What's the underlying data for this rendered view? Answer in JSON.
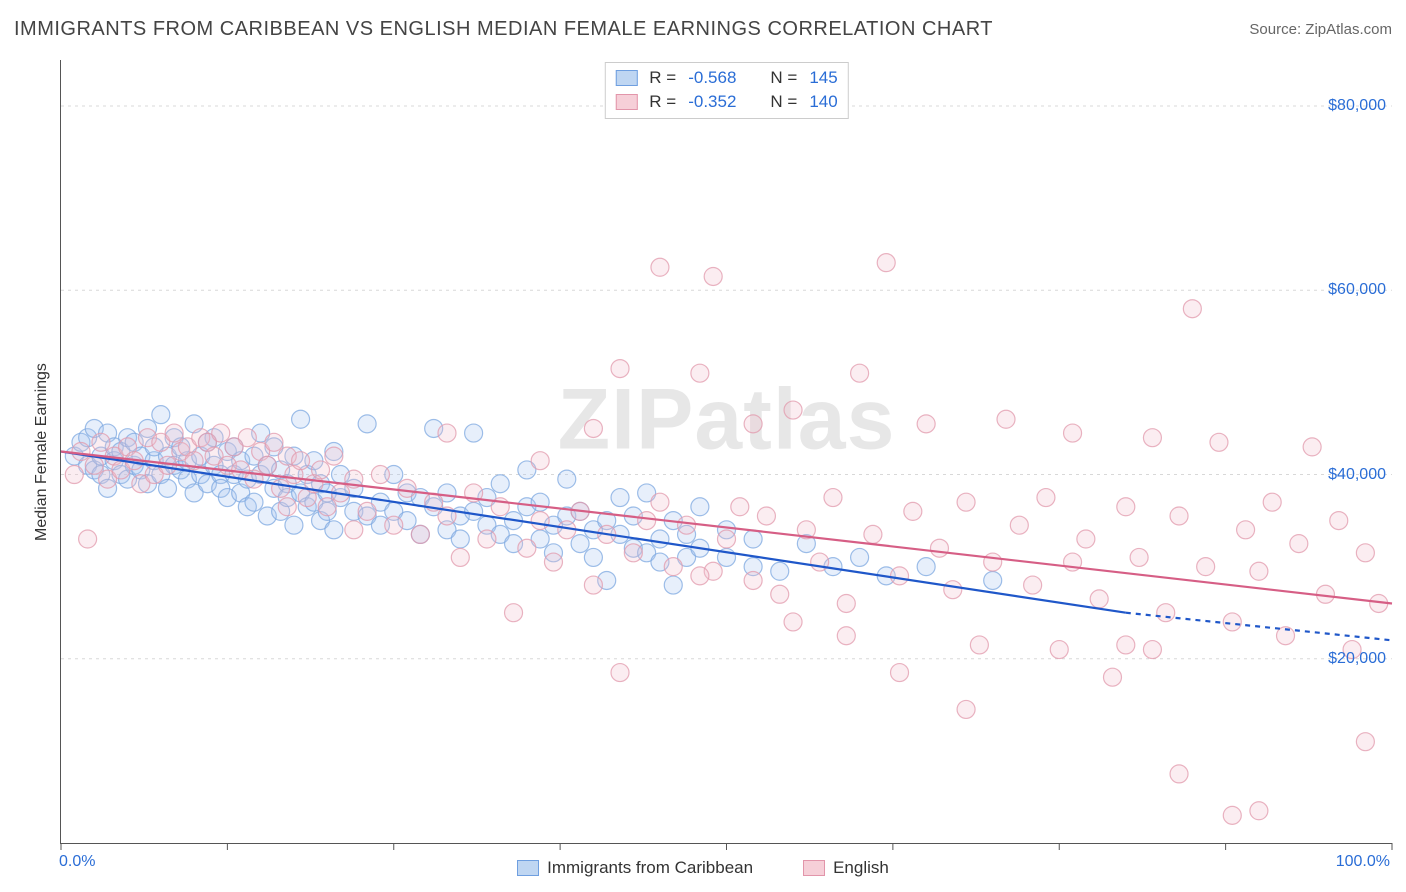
{
  "header": {
    "title": "IMMIGRANTS FROM CARIBBEAN VS ENGLISH MEDIAN FEMALE EARNINGS CORRELATION CHART",
    "source_prefix": "Source: ",
    "source_name": "ZipAtlas.com"
  },
  "watermark": "ZIPatlas",
  "axes": {
    "ylabel": "Median Female Earnings",
    "xmin_label": "0.0%",
    "xmax_label": "100.0%",
    "xlim": [
      0,
      100
    ],
    "ylim": [
      0,
      85000
    ],
    "yticks": [
      {
        "v": 20000,
        "label": "$20,000"
      },
      {
        "v": 40000,
        "label": "$40,000"
      },
      {
        "v": 60000,
        "label": "$60,000"
      },
      {
        "v": 80000,
        "label": "$80,000"
      }
    ],
    "ytick_color": "#2a6dd6",
    "xaxis_label_color": "#2a6dd6",
    "xtick_positions": [
      0,
      12.5,
      25,
      37.5,
      50,
      62.5,
      75,
      87.5,
      100
    ],
    "grid_color": "#d8d8d8",
    "background_color": "#ffffff"
  },
  "marker": {
    "radius": 9,
    "fill_opacity": 0.28,
    "stroke_opacity": 0.75,
    "stroke_width": 1.2
  },
  "series": [
    {
      "key": "blue",
      "name": "Immigrants from Caribbean",
      "color_stroke": "#7ea8e0",
      "color_fill": "#a9c7ef",
      "swatch_fill": "#bfd6f2",
      "swatch_border": "#6f9fe0",
      "trend_color": "#1f57c9",
      "R": "-0.568",
      "N": "145",
      "trend": {
        "x1": 0,
        "y1": 42500,
        "x2": 80,
        "y2": 25000,
        "x2_ext": 100,
        "y2_ext": 22000
      },
      "points": [
        [
          1,
          42000
        ],
        [
          1.5,
          43500
        ],
        [
          2,
          41000
        ],
        [
          2,
          44000
        ],
        [
          2.5,
          40500
        ],
        [
          2.5,
          45000
        ],
        [
          3,
          42000
        ],
        [
          3,
          40000
        ],
        [
          3.5,
          44500
        ],
        [
          3.5,
          38500
        ],
        [
          4,
          43000
        ],
        [
          4,
          41500
        ],
        [
          4.5,
          40000
        ],
        [
          4.5,
          42500
        ],
        [
          5,
          44000
        ],
        [
          5,
          39500
        ],
        [
          5.5,
          41000
        ],
        [
          5.5,
          43500
        ],
        [
          6,
          42000
        ],
        [
          6,
          40500
        ],
        [
          6.5,
          45000
        ],
        [
          6.5,
          39000
        ],
        [
          7,
          41500
        ],
        [
          7,
          43000
        ],
        [
          7.5,
          40000
        ],
        [
          7.5,
          46500
        ],
        [
          8,
          42000
        ],
        [
          8,
          38500
        ],
        [
          8.5,
          41000
        ],
        [
          8.5,
          44000
        ],
        [
          9,
          40500
        ],
        [
          9,
          43000
        ],
        [
          9.5,
          39500
        ],
        [
          9.5,
          41500
        ],
        [
          10,
          45500
        ],
        [
          10,
          38000
        ],
        [
          10.5,
          42000
        ],
        [
          10.5,
          40000
        ],
        [
          11,
          43500
        ],
        [
          11,
          39000
        ],
        [
          11.5,
          41000
        ],
        [
          11.5,
          44000
        ],
        [
          12,
          40000
        ],
        [
          12,
          38500
        ],
        [
          12.5,
          42500
        ],
        [
          12.5,
          37500
        ],
        [
          13,
          40000
        ],
        [
          13,
          43000
        ],
        [
          13.5,
          38000
        ],
        [
          13.5,
          41500
        ],
        [
          14,
          39500
        ],
        [
          14,
          36500
        ],
        [
          14.5,
          42000
        ],
        [
          14.5,
          37000
        ],
        [
          15,
          40000
        ],
        [
          15,
          44500
        ],
        [
          15.5,
          35500
        ],
        [
          15.5,
          41000
        ],
        [
          16,
          38500
        ],
        [
          16,
          43000
        ],
        [
          16.5,
          36000
        ],
        [
          16.5,
          40500
        ],
        [
          17,
          39000
        ],
        [
          17,
          37500
        ],
        [
          17.5,
          42000
        ],
        [
          17.5,
          34500
        ],
        [
          18,
          38000
        ],
        [
          18,
          46000
        ],
        [
          18.5,
          36500
        ],
        [
          18.5,
          40000
        ],
        [
          19,
          37000
        ],
        [
          19,
          41500
        ],
        [
          19.5,
          35000
        ],
        [
          19.5,
          39000
        ],
        [
          20,
          38000
        ],
        [
          20,
          36000
        ],
        [
          20.5,
          42500
        ],
        [
          20.5,
          34000
        ],
        [
          21,
          37500
        ],
        [
          21,
          40000
        ],
        [
          22,
          36000
        ],
        [
          22,
          38500
        ],
        [
          23,
          35500
        ],
        [
          23,
          45500
        ],
        [
          24,
          37000
        ],
        [
          24,
          34500
        ],
        [
          25,
          36000
        ],
        [
          25,
          40000
        ],
        [
          26,
          35000
        ],
        [
          26,
          38000
        ],
        [
          27,
          33500
        ],
        [
          27,
          37500
        ],
        [
          28,
          36500
        ],
        [
          28,
          45000
        ],
        [
          29,
          34000
        ],
        [
          29,
          38000
        ],
        [
          30,
          35500
        ],
        [
          30,
          33000
        ],
        [
          31,
          36000
        ],
        [
          31,
          44500
        ],
        [
          32,
          34500
        ],
        [
          32,
          37500
        ],
        [
          33,
          33500
        ],
        [
          33,
          39000
        ],
        [
          34,
          35000
        ],
        [
          34,
          32500
        ],
        [
          35,
          36500
        ],
        [
          35,
          40500
        ],
        [
          36,
          33000
        ],
        [
          36,
          37000
        ],
        [
          37,
          34500
        ],
        [
          37,
          31500
        ],
        [
          38,
          35500
        ],
        [
          38,
          39500
        ],
        [
          39,
          32500
        ],
        [
          39,
          36000
        ],
        [
          40,
          34000
        ],
        [
          40,
          31000
        ],
        [
          41,
          35000
        ],
        [
          41,
          28500
        ],
        [
          42,
          33500
        ],
        [
          42,
          37500
        ],
        [
          43,
          32000
        ],
        [
          43,
          35500
        ],
        [
          44,
          31500
        ],
        [
          44,
          38000
        ],
        [
          45,
          33000
        ],
        [
          45,
          30500
        ],
        [
          46,
          35000
        ],
        [
          46,
          28000
        ],
        [
          47,
          31000
        ],
        [
          47,
          33500
        ],
        [
          48,
          32000
        ],
        [
          48,
          36500
        ],
        [
          50,
          31000
        ],
        [
          50,
          34000
        ],
        [
          52,
          30000
        ],
        [
          52,
          33000
        ],
        [
          54,
          29500
        ],
        [
          56,
          32500
        ],
        [
          58,
          30000
        ],
        [
          60,
          31000
        ],
        [
          62,
          29000
        ],
        [
          65,
          30000
        ],
        [
          70,
          28500
        ]
      ]
    },
    {
      "key": "pink",
      "name": "English",
      "color_stroke": "#e19aac",
      "color_fill": "#f2c0cc",
      "swatch_fill": "#f6cfd8",
      "swatch_border": "#e295aa",
      "trend_color": "#d65e85",
      "R": "-0.352",
      "N": "140",
      "trend": {
        "x1": 0,
        "y1": 42500,
        "x2": 100,
        "y2": 26000,
        "x2_ext": 100,
        "y2_ext": 26000
      },
      "points": [
        [
          1,
          40000
        ],
        [
          1.5,
          42500
        ],
        [
          2,
          33000
        ],
        [
          2.5,
          41000
        ],
        [
          3,
          43500
        ],
        [
          3.5,
          39500
        ],
        [
          4,
          42000
        ],
        [
          4.5,
          40500
        ],
        [
          5,
          43000
        ],
        [
          5.5,
          41500
        ],
        [
          6,
          39000
        ],
        [
          6.5,
          44000
        ],
        [
          7,
          40000
        ],
        [
          7.5,
          43500
        ],
        [
          8,
          41000
        ],
        [
          8.5,
          44500
        ],
        [
          9,
          42500
        ],
        [
          9.5,
          43000
        ],
        [
          10,
          41500
        ],
        [
          10.5,
          44000
        ],
        [
          11,
          43500
        ],
        [
          11.5,
          42000
        ],
        [
          12,
          44500
        ],
        [
          12.5,
          41000
        ],
        [
          13,
          43000
        ],
        [
          13.5,
          40500
        ],
        [
          14,
          44000
        ],
        [
          14.5,
          39500
        ],
        [
          15,
          42500
        ],
        [
          15.5,
          41000
        ],
        [
          16,
          43500
        ],
        [
          16.5,
          38500
        ],
        [
          17,
          42000
        ],
        [
          17.5,
          40000
        ],
        [
          18,
          41500
        ],
        [
          18.5,
          37500
        ],
        [
          19,
          39000
        ],
        [
          19.5,
          40500
        ],
        [
          20,
          36500
        ],
        [
          20.5,
          42000
        ],
        [
          21,
          38000
        ],
        [
          22,
          39500
        ],
        [
          23,
          36000
        ],
        [
          24,
          40000
        ],
        [
          25,
          34500
        ],
        [
          26,
          38500
        ],
        [
          27,
          33500
        ],
        [
          28,
          37000
        ],
        [
          29,
          35500
        ],
        [
          30,
          31000
        ],
        [
          31,
          38000
        ],
        [
          32,
          33000
        ],
        [
          33,
          36500
        ],
        [
          34,
          25000
        ],
        [
          35,
          32000
        ],
        [
          36,
          35000
        ],
        [
          37,
          30500
        ],
        [
          38,
          34000
        ],
        [
          39,
          36000
        ],
        [
          40,
          28000
        ],
        [
          41,
          33500
        ],
        [
          42,
          51500
        ],
        [
          43,
          31500
        ],
        [
          44,
          35000
        ],
        [
          45,
          37000
        ],
        [
          45,
          62500
        ],
        [
          46,
          30000
        ],
        [
          47,
          34500
        ],
        [
          48,
          51000
        ],
        [
          49,
          29500
        ],
        [
          49,
          61500
        ],
        [
          50,
          33000
        ],
        [
          51,
          36500
        ],
        [
          52,
          28500
        ],
        [
          53,
          35500
        ],
        [
          54,
          27000
        ],
        [
          55,
          47000
        ],
        [
          56,
          34000
        ],
        [
          57,
          30500
        ],
        [
          58,
          37500
        ],
        [
          59,
          26000
        ],
        [
          60,
          51000
        ],
        [
          61,
          33500
        ],
        [
          62,
          63000
        ],
        [
          63,
          29000
        ],
        [
          64,
          36000
        ],
        [
          65,
          45500
        ],
        [
          66,
          32000
        ],
        [
          67,
          27500
        ],
        [
          68,
          37000
        ],
        [
          69,
          21500
        ],
        [
          70,
          30500
        ],
        [
          71,
          46000
        ],
        [
          72,
          34500
        ],
        [
          73,
          28000
        ],
        [
          74,
          37500
        ],
        [
          75,
          21000
        ],
        [
          76,
          44500
        ],
        [
          77,
          33000
        ],
        [
          78,
          26500
        ],
        [
          79,
          18000
        ],
        [
          80,
          36500
        ],
        [
          80,
          21500
        ],
        [
          81,
          31000
        ],
        [
          82,
          44000
        ],
        [
          82,
          21000
        ],
        [
          83,
          25000
        ],
        [
          84,
          35500
        ],
        [
          85,
          58000
        ],
        [
          86,
          30000
        ],
        [
          87,
          43500
        ],
        [
          88,
          24000
        ],
        [
          88,
          3000
        ],
        [
          89,
          34000
        ],
        [
          90,
          29500
        ],
        [
          90,
          3500
        ],
        [
          91,
          37000
        ],
        [
          92,
          22500
        ],
        [
          93,
          32500
        ],
        [
          94,
          43000
        ],
        [
          95,
          27000
        ],
        [
          96,
          35000
        ],
        [
          97,
          21000
        ],
        [
          98,
          31500
        ],
        [
          98,
          11000
        ],
        [
          99,
          26000
        ],
        [
          63,
          18500
        ],
        [
          68,
          14500
        ],
        [
          84,
          7500
        ],
        [
          55,
          24000
        ],
        [
          59,
          22500
        ],
        [
          48,
          29000
        ],
        [
          52,
          45500
        ],
        [
          40,
          45000
        ],
        [
          42,
          18500
        ],
        [
          36,
          41500
        ],
        [
          29,
          44500
        ],
        [
          22,
          34000
        ],
        [
          17,
          36500
        ],
        [
          76,
          30500
        ]
      ]
    }
  ],
  "stats_box": {
    "labels": {
      "R": "R =",
      "N": "N ="
    }
  },
  "legend_bottom": [
    {
      "series": "blue"
    },
    {
      "series": "pink"
    }
  ]
}
